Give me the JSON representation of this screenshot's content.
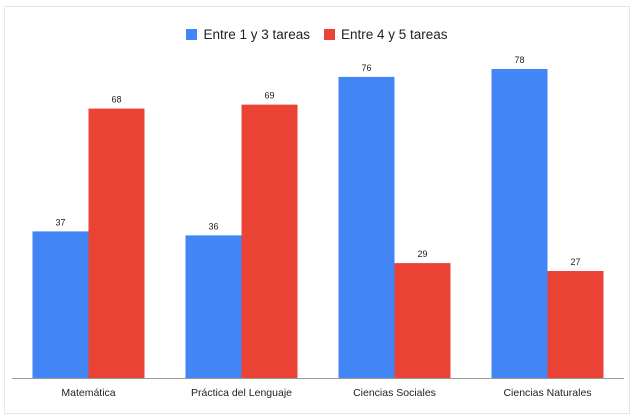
{
  "colors": {
    "series1": "#4285f4",
    "series2": "#ea4335",
    "axis": "#999999",
    "label": "#222222"
  },
  "chart_data": {
    "type": "bar",
    "title": "",
    "xlabel": "",
    "ylabel": "",
    "categories": [
      "Matemática",
      "Práctica del Lenguaje",
      "Ciencias Sociales",
      "Ciencias Naturales"
    ],
    "series": [
      {
        "name": "Entre 1 y 3 tareas",
        "values": [
          37,
          36,
          76,
          78
        ]
      },
      {
        "name": "Entre 4 y 5 tareas",
        "values": [
          68,
          69,
          29,
          27
        ]
      }
    ],
    "ylim": [
      0,
      80
    ],
    "grid": false,
    "legend_position": "top-center",
    "data_labels": true
  }
}
